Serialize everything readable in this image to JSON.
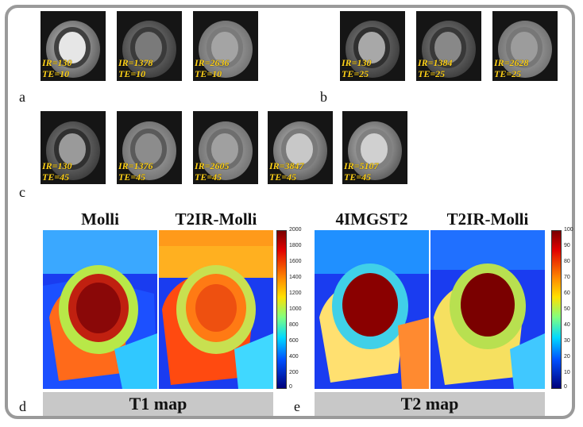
{
  "panel_a": {
    "letter": "a",
    "images": [
      {
        "ir": "IR=130",
        "te": "TE=10"
      },
      {
        "ir": "IR=1378",
        "te": "TE=10"
      },
      {
        "ir": "IR=2636",
        "te": "TE=10"
      }
    ]
  },
  "panel_b": {
    "letter": "b",
    "images": [
      {
        "ir": "IR=130",
        "te": "TE=25"
      },
      {
        "ir": "IR=1384",
        "te": "TE=25"
      },
      {
        "ir": "IR=2628",
        "te": "TE=25"
      }
    ]
  },
  "panel_c": {
    "letter": "c",
    "images": [
      {
        "ir": "IR=130",
        "te": "TE=45"
      },
      {
        "ir": "IR=1376",
        "te": "TE=45"
      },
      {
        "ir": "IR=2605",
        "te": "TE=45"
      },
      {
        "ir": "IR=3847",
        "te": "TE=45"
      },
      {
        "ir": "IR=5107",
        "te": "TE=45"
      }
    ]
  },
  "panel_d": {
    "letter": "d",
    "titles": [
      "Molli",
      "T2IR-Molli"
    ],
    "colorbar_ticks": [
      "2000",
      "1800",
      "1600",
      "1400",
      "1200",
      "1000",
      "800",
      "600",
      "400",
      "200",
      "0"
    ],
    "bar_label": "T1 map"
  },
  "panel_e": {
    "letter": "e",
    "titles": [
      "4IMGST2",
      "T2IR-Molli"
    ],
    "colorbar_ticks": [
      "100",
      "90",
      "80",
      "70",
      "60",
      "50",
      "40",
      "30",
      "20",
      "10",
      "0"
    ],
    "bar_label": "T2 map"
  },
  "colors": {
    "frame": "#9a9a9a",
    "label_yellow": "#ffd21a",
    "bar_gray": "#c8c8c8"
  }
}
